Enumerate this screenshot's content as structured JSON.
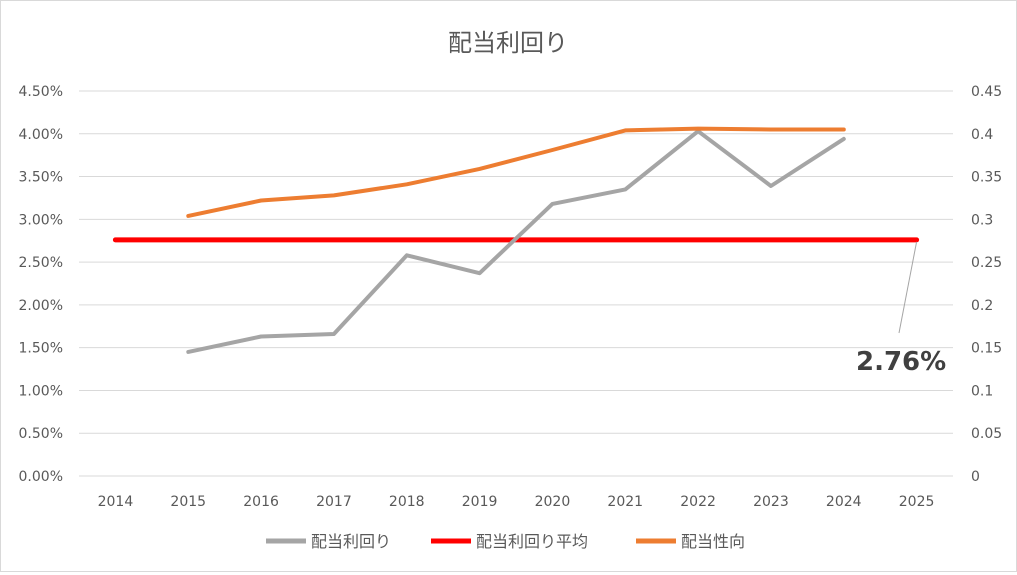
{
  "chart_data": {
    "type": "line",
    "title": "配当利回り",
    "categories": [
      "2014",
      "2015",
      "2016",
      "2017",
      "2018",
      "2019",
      "2020",
      "2021",
      "2022",
      "2023",
      "2024",
      "2025"
    ],
    "y_left_ticks": [
      "0.00%",
      "0.50%",
      "1.00%",
      "1.50%",
      "2.00%",
      "2.50%",
      "3.00%",
      "3.50%",
      "4.00%",
      "4.50%"
    ],
    "y_right_ticks": [
      "0",
      "0.05",
      "0.1",
      "0.15",
      "0.2",
      "0.25",
      "0.3",
      "0.35",
      "0.4",
      "0.45"
    ],
    "ylim_left": [
      0,
      0.045
    ],
    "ylim_right": [
      0,
      0.45
    ],
    "grid": true,
    "legend_position": "bottom",
    "series": [
      {
        "name": "配当利回り",
        "axis": "left",
        "color": "#a5a5a5",
        "x": [
          "2015",
          "2016",
          "2017",
          "2018",
          "2019",
          "2020",
          "2021",
          "2022",
          "2023",
          "2024"
        ],
        "values": [
          0.0145,
          0.0163,
          0.0166,
          0.0258,
          0.0237,
          0.0318,
          0.0335,
          0.0403,
          0.0339,
          0.0394
        ]
      },
      {
        "name": "配当利回り平均",
        "axis": "left",
        "color": "#ff0000",
        "x": [
          "2014",
          "2025"
        ],
        "values": [
          0.0276,
          0.0276
        ]
      },
      {
        "name": "配当性向",
        "axis": "right",
        "color": "#ed7d31",
        "x": [
          "2015",
          "2016",
          "2017",
          "2018",
          "2019",
          "2020",
          "2021",
          "2022",
          "2023",
          "2024"
        ],
        "values": [
          0.304,
          0.322,
          0.328,
          0.341,
          0.359,
          0.381,
          0.404,
          0.406,
          0.405,
          0.405
        ]
      }
    ],
    "annotations": [
      {
        "text": "2.76%",
        "points_to": "2025"
      }
    ]
  }
}
